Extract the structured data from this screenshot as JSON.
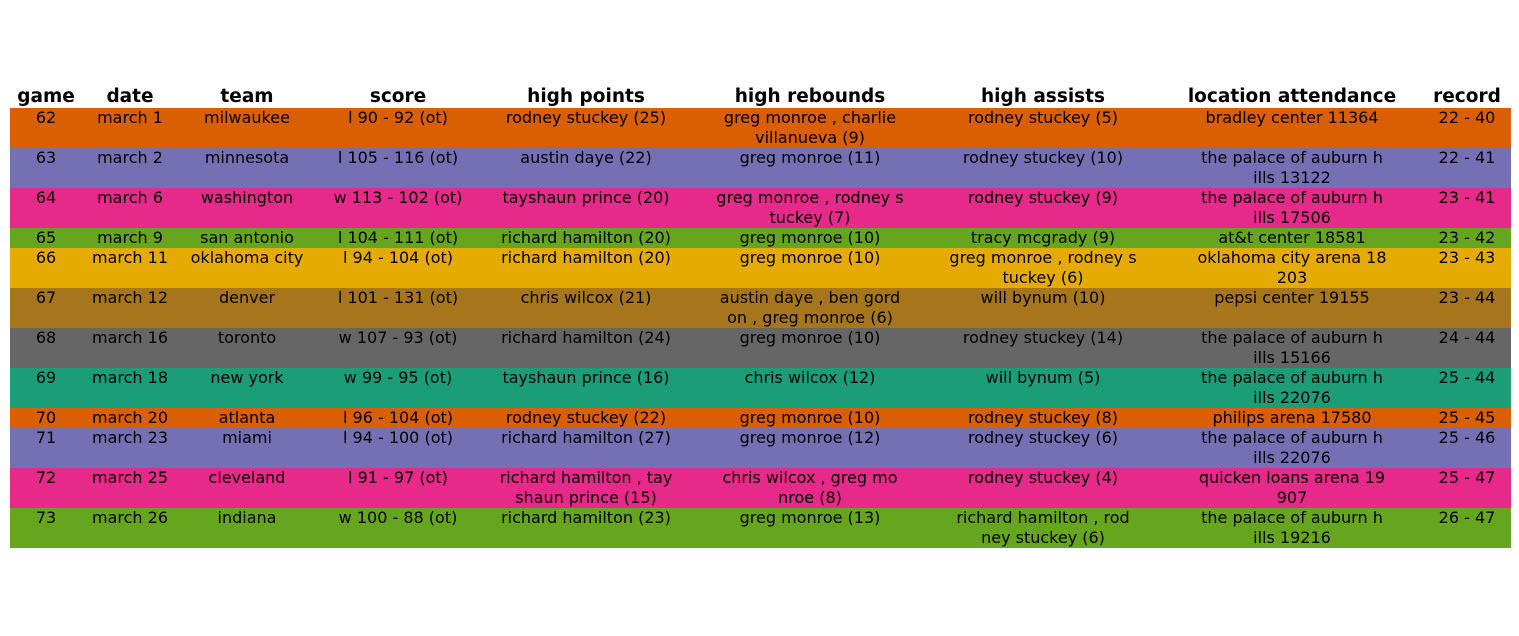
{
  "chart_data": {
    "type": "table",
    "columns": [
      "game",
      "date",
      "team",
      "score",
      "high points",
      "high rebounds",
      "high assists",
      "location attendance",
      "record"
    ],
    "row_colors": [
      "#d95f02",
      "#7570b3",
      "#e7298a",
      "#66a61e",
      "#e6ab02",
      "#a6761d",
      "#666666",
      "#1b9e77",
      "#d95f02",
      "#7570b3",
      "#e7298a",
      "#66a61e"
    ],
    "rows": [
      [
        "62",
        "march 1",
        "milwaukee",
        "l 90 - 92 (ot)",
        "rodney stuckey (25)",
        "greg monroe , charlie\nvillanueva (9)",
        "rodney stuckey (5)",
        "bradley center 11364",
        "22 - 40"
      ],
      [
        "63",
        "march 2",
        "minnesota",
        "l 105 - 116 (ot)",
        "austin daye (22)",
        "greg monroe (11)",
        "rodney stuckey (10)",
        "the palace of auburn h\nills 13122",
        "22 - 41"
      ],
      [
        "64",
        "march 6",
        "washington",
        "w 113 - 102 (ot)",
        "tayshaun prince (20)",
        "greg monroe , rodney s\ntuckey (7)",
        "rodney stuckey (9)",
        "the palace of auburn h\nills 17506",
        "23 - 41"
      ],
      [
        "65",
        "march 9",
        "san antonio",
        "l 104 - 111 (ot)",
        "richard hamilton (20)",
        "greg monroe (10)",
        "tracy mcgrady (9)",
        "at&t center 18581",
        "23 - 42"
      ],
      [
        "66",
        "march 11",
        "oklahoma city",
        "l 94 - 104 (ot)",
        "richard hamilton (20)",
        "greg monroe (10)",
        "greg monroe , rodney s\ntuckey (6)",
        "oklahoma city arena 18\n203",
        "23 - 43"
      ],
      [
        "67",
        "march 12",
        "denver",
        "l 101 - 131 (ot)",
        "chris wilcox (21)",
        "austin daye , ben gord\non , greg monroe (6)",
        "will bynum (10)",
        "pepsi center 19155",
        "23 - 44"
      ],
      [
        "68",
        "march 16",
        "toronto",
        "w 107 - 93 (ot)",
        "richard hamilton (24)",
        "greg monroe (10)",
        "rodney stuckey (14)",
        "the palace of auburn h\nills 15166",
        "24 - 44"
      ],
      [
        "69",
        "march 18",
        "new york",
        "w 99 - 95 (ot)",
        "tayshaun prince (16)",
        "chris wilcox (12)",
        "will bynum (5)",
        "the palace of auburn h\nills 22076",
        "25 - 44"
      ],
      [
        "70",
        "march 20",
        "atlanta",
        "l 96 - 104 (ot)",
        "rodney stuckey (22)",
        "greg monroe (10)",
        "rodney stuckey (8)",
        "philips arena 17580",
        "25 - 45"
      ],
      [
        "71",
        "march 23",
        "miami",
        "l 94 - 100 (ot)",
        "richard hamilton (27)",
        "greg monroe (12)",
        "rodney stuckey (6)",
        "the palace of auburn h\nills 22076",
        "25 - 46"
      ],
      [
        "72",
        "march 25",
        "cleveland",
        "l 91 - 97 (ot)",
        "richard hamilton , tay\nshaun prince (15)",
        "chris wilcox , greg mo\nnroe (8)",
        "rodney stuckey (4)",
        "quicken loans arena 19\n907",
        "25 - 47"
      ],
      [
        "73",
        "march 26",
        "indiana",
        "w 100 - 88 (ot)",
        "richard hamilton (23)",
        "greg monroe (13)",
        "richard hamilton , rod\nney stuckey (6)",
        "the palace of auburn h\nills 19216",
        "26 - 47"
      ]
    ]
  }
}
